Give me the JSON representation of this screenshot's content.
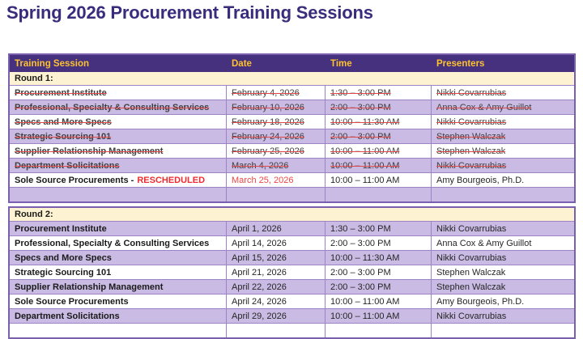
{
  "title": "Spring 2026 Procurement Training Sessions",
  "colors": {
    "title": "#3a2c7d",
    "header_bg": "#46317e",
    "header_text": "#fdc22f",
    "section_row_bg": "#fdf3d2",
    "alt_row_bg": "#c9bbe3",
    "border": "#9c83c6",
    "strike": "#e04848",
    "alert_red": "#ee2b2e"
  },
  "table": {
    "columns": [
      {
        "label": "Training Session"
      },
      {
        "label": "Date"
      },
      {
        "label": "Time"
      },
      {
        "label": "Presenters"
      }
    ],
    "sections": [
      {
        "label": "Round 1:",
        "rows": [
          {
            "session": "Procurement Institute",
            "date": "February 4, 2026",
            "time": "1:30 – 3:00 PM",
            "presenters": "Nikki Covarrubias",
            "struck": true
          },
          {
            "session": "Professional, Specialty & Consulting Services",
            "date": "February 10, 2026",
            "time": "2:00 – 3:00 PM",
            "presenters": "Anna Cox & Amy Guillot",
            "struck": true
          },
          {
            "session": "Specs and More Specs",
            "date": "February 18, 2026",
            "time": "10:00 – 11:30 AM",
            "presenters": "Nikki Covarrubias",
            "struck": true
          },
          {
            "session": "Strategic Sourcing 101",
            "date": "February 24, 2026",
            "time": "2:00 – 3:00 PM",
            "presenters": "Stephen Walczak",
            "struck": true
          },
          {
            "session": "Supplier Relationship Management",
            "date": "February 25, 2026",
            "time": "10:00 – 11:00 AM",
            "presenters": "Stephen Walczak",
            "struck": true
          },
          {
            "session": "Department Solicitations",
            "date": "March 4, 2026",
            "time": "10:00 – 11:00 AM",
            "presenters": "Nikki Covarrubias",
            "struck": true
          },
          {
            "session": "Sole Source Procurements -",
            "session_suffix": "RESCHEDULED",
            "date": "March 25, 2026",
            "date_red": true,
            "time": "10:00 – 11:00 AM",
            "presenters": "Amy Bourgeois, Ph.D.",
            "struck": false
          },
          {
            "session": "",
            "date": "",
            "time": "",
            "presenters": "",
            "struck": false
          }
        ]
      },
      {
        "label": "Round 2:",
        "rows": [
          {
            "session": "Procurement Institute",
            "date": "April 1, 2026",
            "time": "1:30 – 3:00 PM",
            "presenters": "Nikki Covarrubias"
          },
          {
            "session": "Professional, Specialty & Consulting Services",
            "date": "April 14, 2026",
            "time": "2:00 – 3:00 PM",
            "presenters": "Anna Cox & Amy Guillot"
          },
          {
            "session": "Specs and More Specs",
            "date": "April 15, 2026",
            "time": "10:00 – 11:30 AM",
            "presenters": "Nikki Covarrubias"
          },
          {
            "session": "Strategic Sourcing 101",
            "date": "April 21, 2026",
            "time": "2:00 – 3:00 PM",
            "presenters": "Stephen Walczak"
          },
          {
            "session": "Supplier Relationship Management",
            "date": "April 22, 2026",
            "time": "2:00 – 3:00 PM",
            "presenters": "Stephen Walczak"
          },
          {
            "session": "Sole Source Procurements",
            "date": "April 24, 2026",
            "time": "10:00 – 11:00 AM",
            "presenters": "Amy Bourgeois, Ph.D."
          },
          {
            "session": "Department Solicitations",
            "date": "April 29, 2026",
            "time": "10:00 – 11:00 AM",
            "presenters": "Nikki Covarrubias"
          },
          {
            "session": "",
            "date": "",
            "time": "",
            "presenters": ""
          }
        ]
      }
    ]
  }
}
